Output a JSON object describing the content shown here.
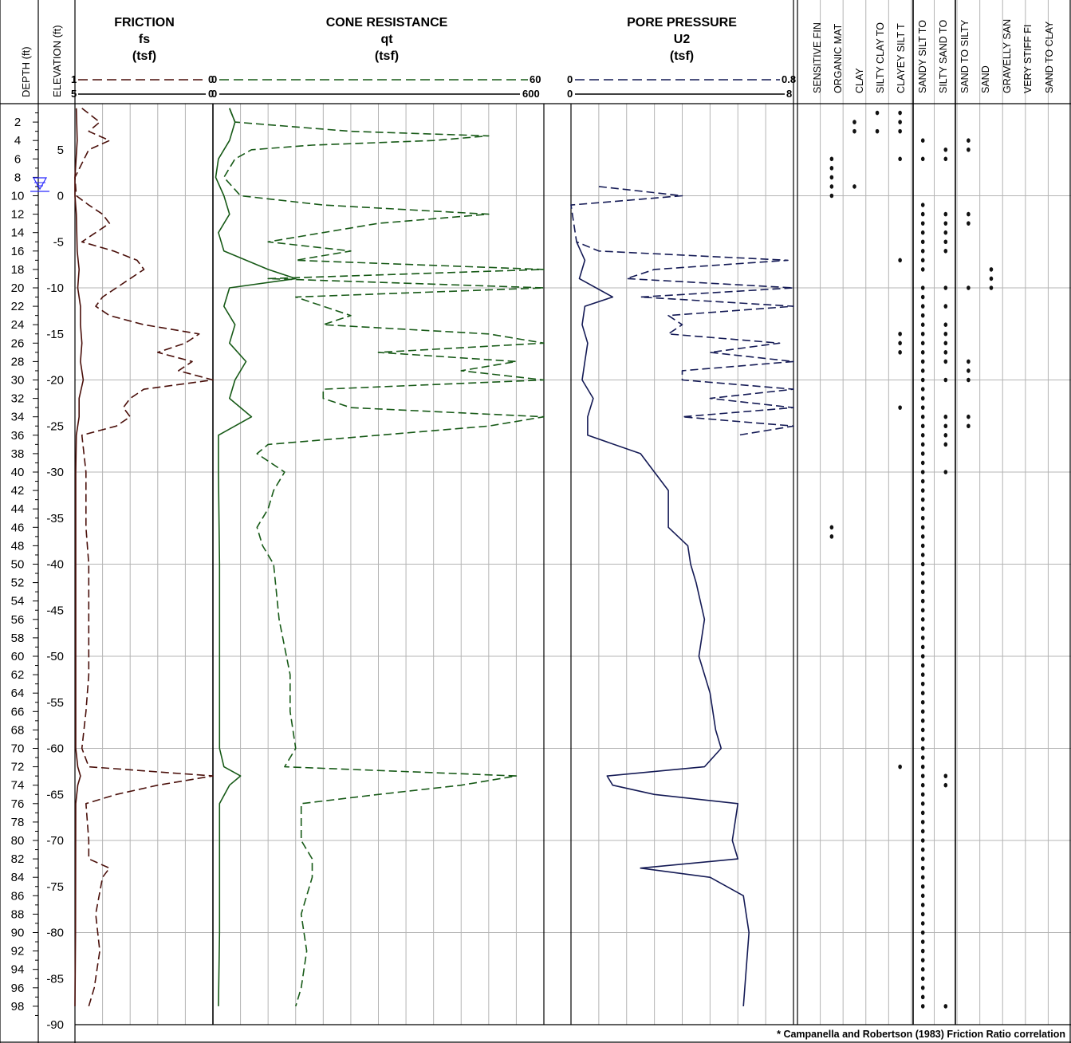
{
  "headers": {
    "depth_label": "DEPTH (ft)",
    "elevation_label": "ELEVATION (ft)",
    "friction": {
      "title": "FRICTION",
      "symbol": "fs",
      "unit": "(tsf)",
      "scale_dashed": [
        "1",
        "0"
      ],
      "scale_solid": [
        "5",
        "0"
      ]
    },
    "cone": {
      "title": "CONE RESISTANCE",
      "symbol": "qt",
      "unit": "(tsf)",
      "scale_dashed": [
        "0",
        "60"
      ],
      "scale_solid": [
        "0",
        "600"
      ]
    },
    "pore": {
      "title": "PORE PRESSURE",
      "symbol": "U2",
      "unit": "(tsf)",
      "scale_dashed": [
        "0",
        "0.8"
      ],
      "scale_solid": [
        "0",
        "8"
      ]
    }
  },
  "soil_types": [
    "SENSITIVE FIN",
    "ORGANIC MAT",
    "CLAY",
    "SILTY CLAY TO",
    "CLAYEY SILT T",
    "SANDY SILT TO",
    "SILTY SAND TO",
    "SAND TO SILTY",
    "SAND",
    "GRAVELLY SAN",
    "VERY STIFF FI",
    "SAND TO CLAY"
  ],
  "footnote": "* Campanella and Robertson (1983) Friction Ratio correlation",
  "colors": {
    "friction": "#4a0f0a",
    "cone": "#175a17",
    "pore": "#141a55",
    "water_table": "#2a2aff",
    "grid": "#b4b4b4",
    "axis": "#000000"
  },
  "chart_data": {
    "type": "line",
    "depth_axis": {
      "label": "DEPTH (ft)",
      "range": [
        0,
        100
      ],
      "ticks": [
        2,
        4,
        6,
        8,
        10,
        12,
        14,
        16,
        18,
        20,
        22,
        24,
        26,
        28,
        30,
        32,
        34,
        36,
        38,
        40,
        42,
        44,
        46,
        48,
        50,
        52,
        54,
        56,
        58,
        60,
        62,
        64,
        66,
        68,
        70,
        72,
        74,
        76,
        78,
        80,
        82,
        84,
        86,
        88,
        90,
        92,
        94,
        96,
        98
      ]
    },
    "elevation_axis": {
      "label": "ELEVATION (ft)",
      "ticks": [
        5,
        0,
        -5,
        -10,
        -15,
        -20,
        -25,
        -30,
        -35,
        -40,
        -45,
        -50,
        -55,
        -60,
        -65,
        -70,
        -75,
        -80,
        -85,
        -90
      ]
    },
    "water_table_depth_ft": 9.3,
    "series": [
      {
        "track": "friction",
        "style": "dashed",
        "range": [
          0,
          1
        ],
        "points": [
          [
            0.5,
            0.05
          ],
          [
            2,
            0.18
          ],
          [
            3,
            0.1
          ],
          [
            4,
            0.25
          ],
          [
            5,
            0.1
          ],
          [
            8,
            0.0
          ],
          [
            10,
            0.01
          ],
          [
            11,
            0.1
          ],
          [
            12,
            0.2
          ],
          [
            13,
            0.25
          ],
          [
            14,
            0.15
          ],
          [
            15,
            0.05
          ],
          [
            16,
            0.28
          ],
          [
            17,
            0.45
          ],
          [
            18,
            0.5
          ],
          [
            19,
            0.4
          ],
          [
            20,
            0.3
          ],
          [
            21,
            0.2
          ],
          [
            22,
            0.15
          ],
          [
            23,
            0.25
          ],
          [
            24,
            0.5
          ],
          [
            25,
            0.9
          ],
          [
            26,
            0.8
          ],
          [
            27,
            0.6
          ],
          [
            28,
            0.85
          ],
          [
            29,
            0.75
          ],
          [
            30,
            1.0
          ],
          [
            31,
            0.5
          ],
          [
            32,
            0.4
          ],
          [
            33,
            0.35
          ],
          [
            34,
            0.4
          ],
          [
            35,
            0.3
          ],
          [
            36,
            0.05
          ],
          [
            40,
            0.08
          ],
          [
            46,
            0.08
          ],
          [
            50,
            0.1
          ],
          [
            56,
            0.1
          ],
          [
            62,
            0.1
          ],
          [
            66,
            0.08
          ],
          [
            70,
            0.05
          ],
          [
            72,
            0.1
          ],
          [
            73,
            1.0
          ],
          [
            74,
            0.6
          ],
          [
            75,
            0.3
          ],
          [
            76,
            0.08
          ],
          [
            80,
            0.1
          ],
          [
            82,
            0.1
          ],
          [
            83,
            0.25
          ],
          [
            84,
            0.2
          ],
          [
            88,
            0.15
          ],
          [
            92,
            0.18
          ],
          [
            96,
            0.14
          ],
          [
            98,
            0.1
          ]
        ]
      },
      {
        "track": "friction",
        "style": "solid",
        "range": [
          0,
          5
        ],
        "points": [
          [
            0.5,
            0.05
          ],
          [
            4,
            0.08
          ],
          [
            8,
            0.0
          ],
          [
            10,
            0.0
          ],
          [
            12,
            0.05
          ],
          [
            16,
            0.08
          ],
          [
            18,
            0.15
          ],
          [
            20,
            0.1
          ],
          [
            22,
            0.2
          ],
          [
            24,
            0.2
          ],
          [
            26,
            0.25
          ],
          [
            28,
            0.2
          ],
          [
            30,
            0.3
          ],
          [
            32,
            0.15
          ],
          [
            34,
            0.15
          ],
          [
            36,
            0.05
          ],
          [
            40,
            0.03
          ],
          [
            50,
            0.03
          ],
          [
            60,
            0.03
          ],
          [
            70,
            0.03
          ],
          [
            72,
            0.1
          ],
          [
            73,
            0.2
          ],
          [
            74,
            0.1
          ],
          [
            76,
            0.03
          ],
          [
            90,
            0.02
          ],
          [
            98,
            0.0
          ]
        ]
      },
      {
        "track": "cone",
        "style": "dashed",
        "range": [
          0,
          60
        ],
        "points": [
          [
            0.5,
            3
          ],
          [
            2,
            4
          ],
          [
            3,
            25
          ],
          [
            3.5,
            50
          ],
          [
            4,
            40
          ],
          [
            4.5,
            18
          ],
          [
            5,
            7
          ],
          [
            6,
            4
          ],
          [
            8,
            2
          ],
          [
            10,
            5
          ],
          [
            11,
            20
          ],
          [
            12,
            50
          ],
          [
            13,
            30
          ],
          [
            14,
            20
          ],
          [
            15,
            10
          ],
          [
            16,
            25
          ],
          [
            17,
            15
          ],
          [
            18,
            60
          ],
          [
            19,
            10
          ],
          [
            20,
            60
          ],
          [
            21,
            15
          ],
          [
            22,
            20
          ],
          [
            23,
            25
          ],
          [
            24,
            20
          ],
          [
            25,
            50
          ],
          [
            26,
            60
          ],
          [
            27,
            30
          ],
          [
            28,
            55
          ],
          [
            29,
            45
          ],
          [
            30,
            60
          ],
          [
            31,
            20
          ],
          [
            32,
            20
          ],
          [
            33,
            25
          ],
          [
            34,
            60
          ],
          [
            35,
            50
          ],
          [
            36,
            30
          ],
          [
            37,
            10
          ],
          [
            38,
            8
          ],
          [
            40,
            13
          ],
          [
            42,
            11
          ],
          [
            44,
            10
          ],
          [
            46,
            8
          ],
          [
            48,
            9
          ],
          [
            50,
            11
          ],
          [
            56,
            12
          ],
          [
            62,
            14
          ],
          [
            66,
            14
          ],
          [
            70,
            15
          ],
          [
            72,
            13
          ],
          [
            73,
            55
          ],
          [
            74,
            45
          ],
          [
            75,
            30
          ],
          [
            76,
            16
          ],
          [
            80,
            16
          ],
          [
            82,
            18
          ],
          [
            84,
            18
          ],
          [
            88,
            16
          ],
          [
            92,
            17
          ],
          [
            96,
            16
          ],
          [
            98,
            15
          ]
        ]
      },
      {
        "track": "cone",
        "style": "solid",
        "range": [
          0,
          600
        ],
        "points": [
          [
            0.5,
            30
          ],
          [
            2,
            40
          ],
          [
            4,
            30
          ],
          [
            6,
            10
          ],
          [
            8,
            5
          ],
          [
            10,
            20
          ],
          [
            12,
            30
          ],
          [
            14,
            10
          ],
          [
            16,
            20
          ],
          [
            18,
            100
          ],
          [
            19,
            150
          ],
          [
            20,
            30
          ],
          [
            22,
            20
          ],
          [
            24,
            40
          ],
          [
            26,
            30
          ],
          [
            28,
            60
          ],
          [
            30,
            40
          ],
          [
            32,
            30
          ],
          [
            34,
            70
          ],
          [
            36,
            10
          ],
          [
            40,
            10
          ],
          [
            50,
            12
          ],
          [
            60,
            12
          ],
          [
            70,
            12
          ],
          [
            72,
            20
          ],
          [
            73,
            50
          ],
          [
            74,
            30
          ],
          [
            76,
            12
          ],
          [
            90,
            12
          ],
          [
            98,
            10
          ]
        ]
      },
      {
        "track": "pore",
        "style": "dashed",
        "range": [
          0,
          0.8
        ],
        "points": [
          [
            9,
            0.1
          ],
          [
            10,
            0.4
          ],
          [
            11,
            0.0
          ],
          [
            15,
            0.02
          ],
          [
            16,
            0.1
          ],
          [
            17,
            0.78
          ],
          [
            18,
            0.3
          ],
          [
            19,
            0.2
          ],
          [
            20,
            0.8
          ],
          [
            21,
            0.25
          ],
          [
            22,
            0.8
          ],
          [
            23,
            0.35
          ],
          [
            24,
            0.4
          ],
          [
            25,
            0.35
          ],
          [
            26,
            0.75
          ],
          [
            27,
            0.5
          ],
          [
            28,
            0.8
          ],
          [
            29,
            0.4
          ],
          [
            30,
            0.4
          ],
          [
            31,
            0.8
          ],
          [
            32,
            0.5
          ],
          [
            33,
            0.8
          ],
          [
            34,
            0.4
          ],
          [
            35,
            0.8
          ],
          [
            36,
            0.6
          ]
        ]
      },
      {
        "track": "pore",
        "style": "solid",
        "range": [
          0,
          8
        ],
        "points": [
          [
            15,
            0.2
          ],
          [
            17,
            0.5
          ],
          [
            19,
            0.3
          ],
          [
            21,
            1.5
          ],
          [
            22,
            0.5
          ],
          [
            24,
            0.4
          ],
          [
            26,
            0.6
          ],
          [
            28,
            0.5
          ],
          [
            30,
            0.4
          ],
          [
            32,
            0.8
          ],
          [
            34,
            0.6
          ],
          [
            36,
            0.6
          ],
          [
            38,
            2.5
          ],
          [
            40,
            3.0
          ],
          [
            42,
            3.5
          ],
          [
            46,
            3.5
          ],
          [
            48,
            4.2
          ],
          [
            50,
            4.3
          ],
          [
            52,
            4.5
          ],
          [
            56,
            4.8
          ],
          [
            60,
            4.6
          ],
          [
            64,
            5.0
          ],
          [
            68,
            5.2
          ],
          [
            70,
            5.4
          ],
          [
            72,
            4.8
          ],
          [
            73,
            1.3
          ],
          [
            74,
            1.5
          ],
          [
            75,
            3.0
          ],
          [
            76,
            6.0
          ],
          [
            80,
            5.8
          ],
          [
            82,
            6.0
          ],
          [
            83,
            2.5
          ],
          [
            84,
            5.0
          ],
          [
            86,
            6.2
          ],
          [
            90,
            6.4
          ],
          [
            94,
            6.3
          ],
          [
            98,
            6.2
          ]
        ]
      }
    ],
    "soil_markers": [
      {
        "type": "ORGANIC MAT",
        "depths": [
          6,
          7,
          8,
          9,
          10,
          46,
          47
        ]
      },
      {
        "type": "CLAY",
        "depths": [
          2,
          3,
          9
        ]
      },
      {
        "type": "SILTY CLAY TO",
        "depths": [
          1,
          3
        ]
      },
      {
        "type": "CLAYEY SILT T",
        "depths": [
          1,
          2,
          3,
          6,
          17,
          25,
          26,
          27,
          33,
          72
        ]
      },
      {
        "type": "SANDY SILT TO",
        "depths": [
          4,
          6,
          11,
          12,
          13,
          14,
          15,
          16,
          17,
          18,
          20,
          21,
          22,
          23,
          24,
          25,
          26,
          27,
          28,
          29,
          30,
          31,
          32,
          33,
          34,
          35,
          36,
          37,
          38,
          39,
          40,
          41,
          42,
          43,
          44,
          45,
          46,
          47,
          48,
          49,
          50,
          51,
          52,
          53,
          54,
          55,
          56,
          57,
          58,
          59,
          60,
          61,
          62,
          63,
          64,
          65,
          66,
          67,
          68,
          69,
          70,
          71,
          72,
          73,
          74,
          75,
          76,
          77,
          78,
          79,
          80,
          81,
          82,
          83,
          84,
          85,
          86,
          87,
          88,
          89,
          90,
          91,
          92,
          93,
          94,
          95,
          96,
          97,
          98
        ]
      },
      {
        "type": "SILTY SAND TO",
        "depths": [
          5,
          6,
          12,
          13,
          14,
          15,
          16,
          20,
          22,
          24,
          25,
          26,
          27,
          28,
          30,
          34,
          35,
          36,
          37,
          40,
          73,
          74,
          98
        ]
      },
      {
        "type": "SAND TO SILTY",
        "depths": [
          4,
          5,
          12,
          13,
          20,
          28,
          29,
          30,
          34,
          35
        ]
      },
      {
        "type": "SAND",
        "depths": [
          18,
          19,
          20
        ]
      }
    ]
  }
}
